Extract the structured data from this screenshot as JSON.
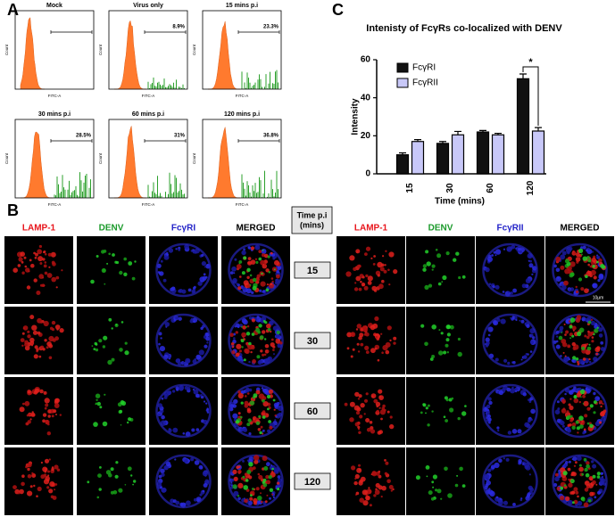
{
  "panel_a": {
    "label": "A",
    "y_label": "Count",
    "x_label": "FITC-A",
    "plots": [
      {
        "title": "Mock"
      },
      {
        "title": "Virus only",
        "gate_label": "8.9%"
      },
      {
        "title": "15 mins p.i",
        "gate_label": "23.3%"
      },
      {
        "title": "30 mins p.i",
        "gate_label": "28.5%"
      },
      {
        "title": "60 mins p.i",
        "gate_label": "31%"
      },
      {
        "title": "120 mins p.i",
        "gate_label": "36.8%"
      }
    ]
  },
  "chart_label": "C",
  "chart_data": {
    "type": "bar",
    "title": "Intenisty of FcγRs co-localized with DENV",
    "x_label": "Time (mins)",
    "y_label": "Intensity",
    "categories": [
      "15",
      "30",
      "60",
      "120"
    ],
    "series": [
      {
        "name": "FcγRI",
        "color": "#111111",
        "values": [
          10,
          16,
          22,
          50
        ],
        "errors": [
          1,
          1,
          0.8,
          2.5
        ]
      },
      {
        "name": "FcγRII",
        "color": "#c8c8f8",
        "values": [
          17,
          20.5,
          20.5,
          22.5
        ],
        "errors": [
          1,
          1.8,
          0.8,
          1.8
        ]
      }
    ],
    "ylim": [
      0,
      60
    ],
    "yticks": [
      0,
      20,
      40,
      60
    ],
    "annotation": "*"
  },
  "panel_b": {
    "label": "B",
    "left_headers": [
      "LAMP-1",
      "DENV",
      "FcγRI",
      "MERGED"
    ],
    "right_headers": [
      "LAMP-1",
      "DENV",
      "FcγRII",
      "MERGED"
    ],
    "time_header": [
      "Time p.i",
      "(mins)"
    ],
    "times": [
      "15",
      "30",
      "60",
      "120"
    ],
    "scale_bar": "10μm"
  }
}
